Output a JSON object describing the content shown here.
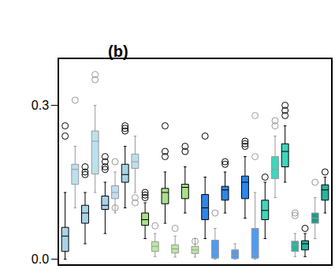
{
  "chart_data": {
    "type": "box",
    "title": "(b)",
    "categories": [
      null,
      null,
      null,
      null,
      null,
      null,
      null,
      null,
      null,
      null,
      null,
      null,
      null,
      null,
      null,
      null,
      null,
      null,
      null,
      null,
      null,
      null,
      null,
      null,
      null,
      null,
      null
    ],
    "ylim": [
      -0.01,
      0.39
    ],
    "yticks": [
      {
        "value": 0,
        "label": "0.0"
      },
      0.3
    ],
    "tick_labels": "y",
    "grid": false,
    "series": [
      {
        "color": "#a9d3e6",
        "lower": 0.0,
        "q1": 0.015,
        "median": 0.045,
        "q3": 0.062,
        "upper": 0.13,
        "outliers": [
          0.26,
          0.24
        ]
      },
      {
        "color": "#bde0ee",
        "lower": 0.1,
        "q1": 0.146,
        "median": 0.175,
        "q3": 0.185,
        "upper": 0.22,
        "outliers": [
          0.31
        ]
      },
      {
        "color": "#a9d3e6",
        "lower": 0.03,
        "q1": 0.07,
        "median": 0.09,
        "q3": 0.105,
        "upper": 0.13,
        "outliers": [
          0.18,
          0.17,
          0.165
        ]
      },
      {
        "color": "#bde0ee",
        "lower": 0.13,
        "q1": 0.166,
        "median": 0.23,
        "q3": 0.25,
        "upper": 0.3,
        "outliers": [
          0.36,
          0.35
        ]
      },
      {
        "color": "#a9d3e6",
        "lower": 0.05,
        "q1": 0.097,
        "median": 0.105,
        "q3": 0.123,
        "upper": 0.15,
        "outliers": [
          0.2,
          0.19,
          0.18,
          0.175
        ]
      },
      {
        "color": "#bde0ee",
        "lower": 0.09,
        "q1": 0.118,
        "median": 0.13,
        "q3": 0.143,
        "upper": 0.17,
        "outliers": [
          0.19,
          0.1
        ]
      },
      {
        "color": "#a9d3e6",
        "lower": 0.1,
        "q1": 0.15,
        "median": 0.165,
        "q3": 0.185,
        "upper": 0.22,
        "outliers": [
          0.26,
          0.255,
          0.25
        ]
      },
      {
        "color": "#bde0ee",
        "lower": 0.13,
        "q1": 0.177,
        "median": 0.19,
        "q3": 0.205,
        "upper": 0.24,
        "outliers": [
          0.12,
          0.11
        ]
      },
      {
        "color": "#a8e08c",
        "lower": 0.04,
        "q1": 0.066,
        "median": 0.077,
        "q3": 0.09,
        "upper": 0.11,
        "outliers": [
          0.13,
          0.125,
          0.12
        ]
      },
      {
        "color": "#b9e7a4",
        "lower": 0.005,
        "q1": 0.015,
        "median": 0.025,
        "q3": 0.034,
        "upper": 0.05,
        "outliers": [
          0.065
        ]
      },
      {
        "color": "#a8e08c",
        "lower": 0.07,
        "q1": 0.108,
        "median": 0.13,
        "q3": 0.138,
        "upper": 0.17,
        "outliers": [
          0.26,
          0.21,
          0.2
        ]
      },
      {
        "color": "#b9e7a4",
        "lower": 0.004,
        "q1": 0.012,
        "median": 0.02,
        "q3": 0.028,
        "upper": 0.045,
        "outliers": [
          0.06
        ]
      },
      {
        "color": "#a8e08c",
        "lower": 0.09,
        "q1": 0.118,
        "median": 0.14,
        "q3": 0.146,
        "upper": 0.18,
        "outliers": [
          0.22,
          0.21
        ]
      },
      {
        "color": "#b9e7a4",
        "lower": 0.004,
        "q1": 0.011,
        "median": 0.018,
        "q3": 0.025,
        "upper": 0.04,
        "outliers": [
          0.035
        ]
      },
      {
        "color": "#2f86e8",
        "lower": 0.04,
        "q1": 0.077,
        "median": 0.1,
        "q3": 0.126,
        "upper": 0.16,
        "outliers": [
          0.24
        ]
      },
      {
        "color": "#4f9cef",
        "lower": 0.0,
        "q1": 0.002,
        "median": 0.015,
        "q3": 0.037,
        "upper": 0.06,
        "outliers": [
          0.09
        ]
      },
      {
        "color": "#2f86e8",
        "lower": 0.09,
        "q1": 0.115,
        "median": 0.135,
        "q3": 0.142,
        "upper": 0.17,
        "outliers": [
          0.19,
          0.185
        ]
      },
      {
        "color": "#4f9cef",
        "lower": 0.0,
        "q1": 0.001,
        "median": 0.008,
        "q3": 0.018,
        "upper": 0.03,
        "outliers": []
      },
      {
        "color": "#2f86e8",
        "lower": 0.08,
        "q1": 0.118,
        "median": 0.15,
        "q3": 0.162,
        "upper": 0.2,
        "outliers": [
          0.23,
          0.225,
          0.22
        ]
      },
      {
        "color": "#4f9cef",
        "lower": 0.0,
        "q1": 0.002,
        "median": 0.01,
        "q3": 0.06,
        "upper": 0.13,
        "outliers": [
          0.28,
          0.2
        ]
      },
      {
        "color": "#3fd6bc",
        "lower": 0.04,
        "q1": 0.077,
        "median": 0.095,
        "q3": 0.115,
        "upper": 0.15,
        "outliers": [
          0.16
        ]
      },
      {
        "color": "#3fd6bc",
        "lower": 0.12,
        "q1": 0.157,
        "median": 0.175,
        "q3": 0.2,
        "upper": 0.24,
        "outliers": [
          0.27,
          0.26
        ]
      },
      {
        "color": "#3fd6bc",
        "lower": 0.15,
        "q1": 0.18,
        "median": 0.21,
        "q3": 0.225,
        "upper": 0.26,
        "outliers": [
          0.3,
          0.29,
          0.28
        ]
      },
      {
        "color": "#2ab39e",
        "lower": 0.005,
        "q1": 0.015,
        "median": 0.028,
        "q3": 0.035,
        "upper": 0.05,
        "outliers": [
          0.09,
          0.085
        ]
      },
      {
        "color": "#2ab39e",
        "lower": 0.005,
        "q1": 0.018,
        "median": 0.03,
        "q3": 0.036,
        "upper": 0.05,
        "outliers": [
          0.06
        ]
      },
      {
        "color": "#1f9a8a",
        "lower": 0.04,
        "q1": 0.07,
        "median": 0.08,
        "q3": 0.09,
        "upper": 0.12,
        "outliers": [
          0.15
        ]
      },
      {
        "color": "#2ab39e",
        "lower": 0.09,
        "q1": 0.115,
        "median": 0.135,
        "q3": 0.145,
        "upper": 0.16,
        "outliers": [
          0.17
        ]
      }
    ]
  }
}
